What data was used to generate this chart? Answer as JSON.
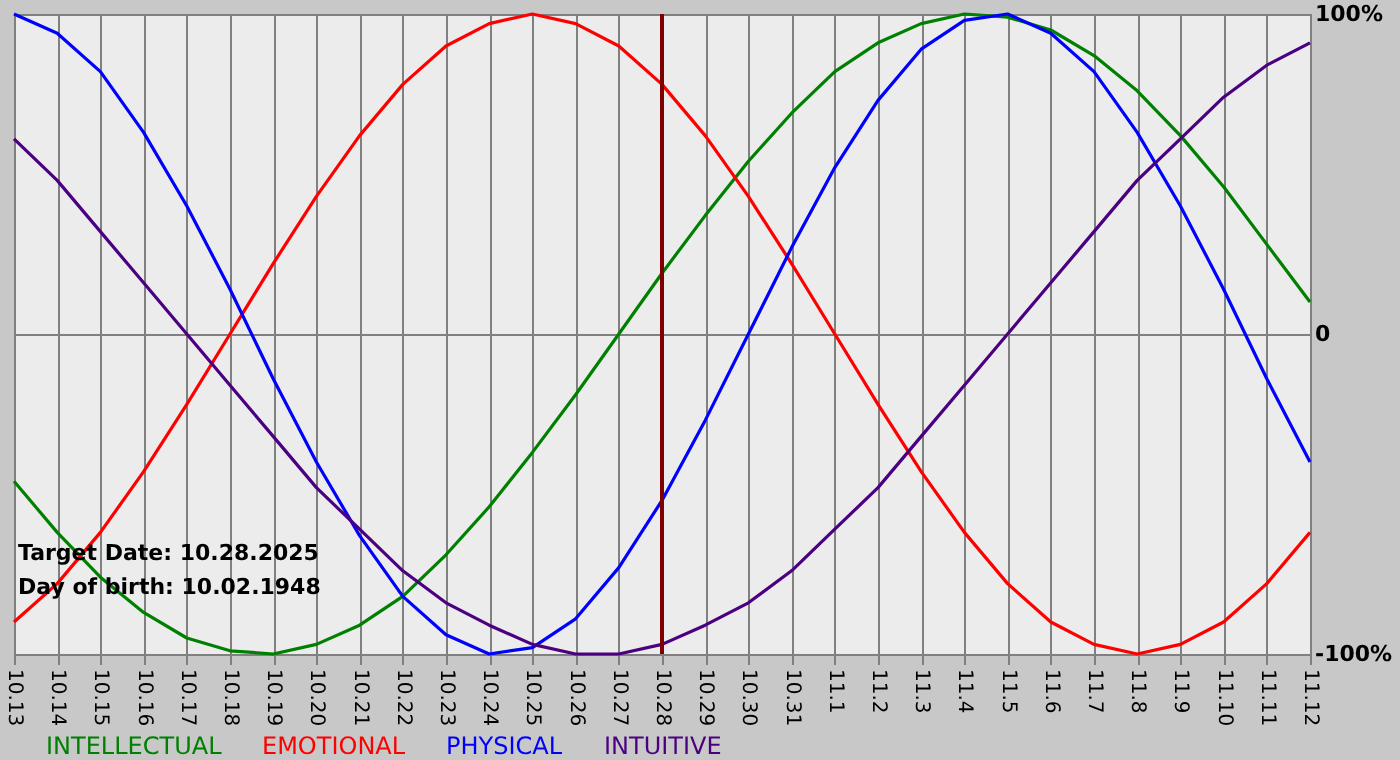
{
  "chart_data": {
    "type": "line",
    "categories": [
      "10.13",
      "10.14",
      "10.15",
      "10.16",
      "10.17",
      "10.18",
      "10.19",
      "10.20",
      "10.21",
      "10.22",
      "10.23",
      "10.24",
      "10.25",
      "10.26",
      "10.27",
      "10.28",
      "10.29",
      "10.30",
      "10.31",
      "11.1",
      "11.2",
      "11.3",
      "11.4",
      "11.5",
      "11.6",
      "11.7",
      "11.8",
      "11.9",
      "11.10",
      "11.11",
      "11.12"
    ],
    "series": [
      {
        "name": "INTELLECTUAL",
        "color": "#008000",
        "values": [
          -46,
          -62,
          -76,
          -87,
          -95,
          -99,
          -100,
          -97,
          -91,
          -82,
          -69,
          -54,
          -37,
          -19,
          0,
          19,
          37,
          54,
          69,
          82,
          91,
          97,
          100,
          99,
          95,
          87,
          76,
          62,
          46,
          28,
          10
        ]
      },
      {
        "name": "EMOTIONAL",
        "color": "#ff0000",
        "values": [
          -90,
          -78,
          -62,
          -43,
          -22,
          0,
          22,
          43,
          62,
          78,
          90,
          97,
          100,
          97,
          90,
          78,
          62,
          43,
          22,
          0,
          -22,
          -43,
          -62,
          -78,
          -90,
          -97,
          -100,
          -97,
          -90,
          -78,
          -62
        ]
      },
      {
        "name": "PHYSICAL",
        "color": "#0000ff",
        "values": [
          100,
          94,
          82,
          63,
          40,
          14,
          -14,
          -40,
          -63,
          -82,
          -94,
          -100,
          -98,
          -89,
          -73,
          -52,
          -27,
          0,
          27,
          52,
          73,
          89,
          98,
          100,
          94,
          82,
          63,
          40,
          14,
          -14,
          -40
        ]
      },
      {
        "name": "INTUITIVE",
        "color": "#4b0082",
        "values": [
          61,
          48,
          32,
          16,
          0,
          -16,
          -32,
          -48,
          -61,
          -74,
          -84,
          -91,
          -97,
          -100,
          -100,
          -97,
          -91,
          -84,
          -74,
          -61,
          -48,
          -32,
          -16,
          0,
          16,
          32,
          48,
          61,
          74,
          84,
          91
        ]
      }
    ],
    "ylim": [
      -100,
      100
    ],
    "yticks": [
      {
        "value": 100,
        "label": "100%"
      },
      0,
      {
        "value": -100,
        "label": "-100%"
      }
    ],
    "ref_lines": [
      {
        "axis": "x",
        "value": "10.28",
        "color": "#800000"
      }
    ],
    "annotations": [
      "Target Date: 10.28.2025",
      "Day of birth: 10.02.1948"
    ],
    "grid": true,
    "legend": "bottom",
    "marker": "none",
    "line_style": "solid"
  }
}
